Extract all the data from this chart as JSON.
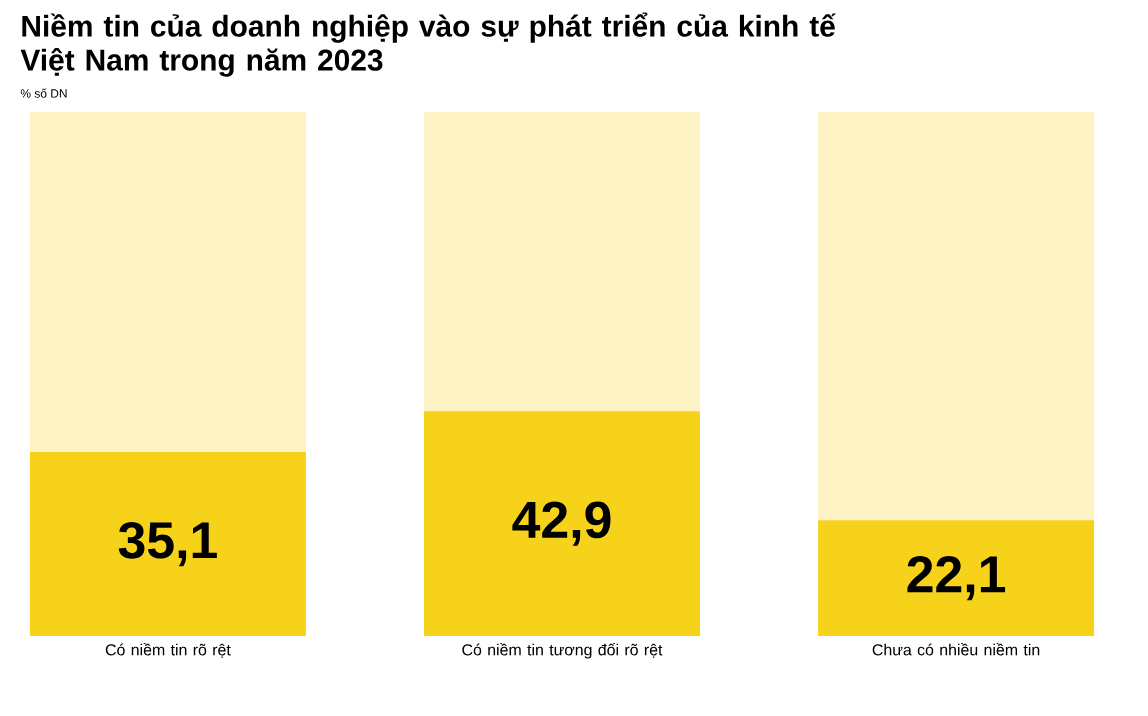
{
  "chart_data": {
    "type": "bar",
    "title": "Niềm tin của doanh nghiệp vào sự phát triển của kinh tế Việt Nam trong năm 2023",
    "subtitle": "% số DN",
    "categories": [
      "Có niềm tin rõ rệt",
      "Có niềm tin tương đối rõ rệt",
      "Chưa có nhiều niềm tin"
    ],
    "stacked": true,
    "ylim": [
      0,
      100
    ],
    "tick_labels": "x",
    "series": [
      {
        "color": "#f6d21b",
        "values": [
          35.1,
          42.9,
          22.1
        ],
        "value_labels": [
          "35,1",
          "42,9",
          "22,1"
        ]
      },
      {
        "color": "#fdf3c5",
        "values": [
          64.9,
          57.1,
          77.9
        ]
      }
    ]
  }
}
